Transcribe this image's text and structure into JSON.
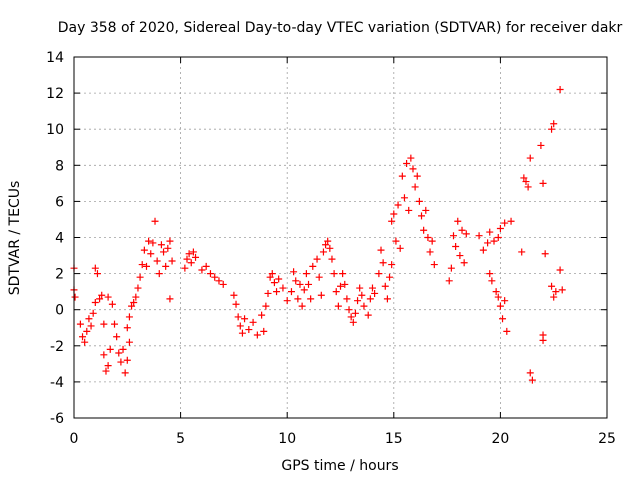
{
  "chart_data": {
    "type": "scatter",
    "title": "Day 358 of 2020, Sidereal Day-to-day VTEC variation (SDTVAR) for receiver dakr",
    "xlabel": "GPS time / hours",
    "ylabel": "SDTVAR / TECUs",
    "xlim": [
      0,
      25
    ],
    "ylim": [
      -6,
      14
    ],
    "xticks": [
      0,
      5,
      10,
      15,
      20,
      25
    ],
    "yticks": [
      -6,
      -4,
      -2,
      0,
      2,
      4,
      6,
      8,
      10,
      12,
      14
    ],
    "grid": true,
    "marker": "+",
    "color": "#ff0000",
    "series": [
      {
        "name": "SDTVAR",
        "points": [
          [
            0.0,
            2.3
          ],
          [
            0.0,
            1.1
          ],
          [
            0.05,
            0.7
          ],
          [
            0.3,
            -0.8
          ],
          [
            0.4,
            -1.5
          ],
          [
            0.5,
            -1.8
          ],
          [
            0.6,
            -1.2
          ],
          [
            0.7,
            -0.5
          ],
          [
            0.8,
            -0.9
          ],
          [
            0.9,
            -0.2
          ],
          [
            1.0,
            0.4
          ],
          [
            1.0,
            2.3
          ],
          [
            1.1,
            2.0
          ],
          [
            1.2,
            0.6
          ],
          [
            1.3,
            0.8
          ],
          [
            1.4,
            -0.8
          ],
          [
            1.4,
            -2.5
          ],
          [
            1.5,
            -3.4
          ],
          [
            1.6,
            -3.1
          ],
          [
            1.7,
            -2.2
          ],
          [
            1.6,
            0.7
          ],
          [
            1.8,
            0.3
          ],
          [
            1.9,
            -0.8
          ],
          [
            2.0,
            -1.5
          ],
          [
            2.1,
            -2.4
          ],
          [
            2.2,
            -2.9
          ],
          [
            2.3,
            -2.2
          ],
          [
            2.4,
            -3.5
          ],
          [
            2.5,
            -2.8
          ],
          [
            2.5,
            -1.0
          ],
          [
            2.6,
            -1.8
          ],
          [
            2.6,
            -0.4
          ],
          [
            2.7,
            0.2
          ],
          [
            2.8,
            0.4
          ],
          [
            2.9,
            0.7
          ],
          [
            3.0,
            1.2
          ],
          [
            3.1,
            1.8
          ],
          [
            3.2,
            2.5
          ],
          [
            3.3,
            3.3
          ],
          [
            3.4,
            2.4
          ],
          [
            3.5,
            3.8
          ],
          [
            3.6,
            3.1
          ],
          [
            3.7,
            3.7
          ],
          [
            3.8,
            4.9
          ],
          [
            3.9,
            2.7
          ],
          [
            4.0,
            2.0
          ],
          [
            4.1,
            3.6
          ],
          [
            4.2,
            3.2
          ],
          [
            4.3,
            2.4
          ],
          [
            4.4,
            3.4
          ],
          [
            4.5,
            3.8
          ],
          [
            4.5,
            0.6
          ],
          [
            4.6,
            2.7
          ],
          [
            5.2,
            2.3
          ],
          [
            5.3,
            2.8
          ],
          [
            5.4,
            3.1
          ],
          [
            5.5,
            2.6
          ],
          [
            5.6,
            3.2
          ],
          [
            5.7,
            2.9
          ],
          [
            6.0,
            2.2
          ],
          [
            6.2,
            2.4
          ],
          [
            6.4,
            2.0
          ],
          [
            6.6,
            1.8
          ],
          [
            6.8,
            1.6
          ],
          [
            7.0,
            1.4
          ],
          [
            7.5,
            0.8
          ],
          [
            7.6,
            0.3
          ],
          [
            7.7,
            -0.4
          ],
          [
            7.8,
            -0.9
          ],
          [
            7.9,
            -1.3
          ],
          [
            8.0,
            -0.5
          ],
          [
            8.2,
            -1.1
          ],
          [
            8.4,
            -0.7
          ],
          [
            8.6,
            -1.4
          ],
          [
            8.8,
            -0.3
          ],
          [
            8.9,
            -1.2
          ],
          [
            9.0,
            0.2
          ],
          [
            9.1,
            0.9
          ],
          [
            9.2,
            1.8
          ],
          [
            9.3,
            2.0
          ],
          [
            9.4,
            1.5
          ],
          [
            9.5,
            1.0
          ],
          [
            9.6,
            1.7
          ],
          [
            9.8,
            1.2
          ],
          [
            10.0,
            0.5
          ],
          [
            10.2,
            1.0
          ],
          [
            10.3,
            2.1
          ],
          [
            10.4,
            1.6
          ],
          [
            10.5,
            0.6
          ],
          [
            10.6,
            1.4
          ],
          [
            10.7,
            0.2
          ],
          [
            10.8,
            1.1
          ],
          [
            10.9,
            2.0
          ],
          [
            11.0,
            1.4
          ],
          [
            11.1,
            0.6
          ],
          [
            11.2,
            2.4
          ],
          [
            11.4,
            2.8
          ],
          [
            11.5,
            1.8
          ],
          [
            11.6,
            0.8
          ],
          [
            11.7,
            3.2
          ],
          [
            11.8,
            3.6
          ],
          [
            11.9,
            3.8
          ],
          [
            12.0,
            3.4
          ],
          [
            12.1,
            2.8
          ],
          [
            12.2,
            2.0
          ],
          [
            12.3,
            1.0
          ],
          [
            12.4,
            0.2
          ],
          [
            12.5,
            1.3
          ],
          [
            12.6,
            2.0
          ],
          [
            12.7,
            1.4
          ],
          [
            12.8,
            0.6
          ],
          [
            12.9,
            0.0
          ],
          [
            13.0,
            -0.4
          ],
          [
            13.1,
            -0.7
          ],
          [
            13.2,
            -0.2
          ],
          [
            13.3,
            0.5
          ],
          [
            13.4,
            1.2
          ],
          [
            13.5,
            0.8
          ],
          [
            13.6,
            0.2
          ],
          [
            13.8,
            -0.3
          ],
          [
            13.9,
            0.6
          ],
          [
            14.0,
            1.2
          ],
          [
            14.1,
            0.9
          ],
          [
            14.3,
            2.0
          ],
          [
            14.4,
            3.3
          ],
          [
            14.5,
            2.6
          ],
          [
            14.6,
            1.3
          ],
          [
            14.7,
            0.6
          ],
          [
            14.8,
            1.8
          ],
          [
            14.9,
            2.5
          ],
          [
            14.9,
            4.9
          ],
          [
            15.0,
            5.3
          ],
          [
            15.1,
            3.8
          ],
          [
            15.2,
            5.8
          ],
          [
            15.3,
            3.4
          ],
          [
            15.4,
            7.4
          ],
          [
            15.5,
            6.2
          ],
          [
            15.6,
            8.1
          ],
          [
            15.7,
            5.5
          ],
          [
            15.8,
            8.4
          ],
          [
            15.9,
            7.8
          ],
          [
            16.0,
            6.8
          ],
          [
            16.1,
            7.4
          ],
          [
            16.2,
            6.0
          ],
          [
            16.3,
            5.2
          ],
          [
            16.4,
            4.4
          ],
          [
            16.5,
            5.5
          ],
          [
            16.6,
            4.0
          ],
          [
            16.7,
            3.2
          ],
          [
            16.8,
            3.8
          ],
          [
            16.9,
            2.5
          ],
          [
            17.6,
            1.6
          ],
          [
            17.7,
            2.3
          ],
          [
            17.8,
            4.1
          ],
          [
            17.9,
            3.5
          ],
          [
            18.0,
            4.9
          ],
          [
            18.1,
            3.0
          ],
          [
            18.2,
            4.4
          ],
          [
            18.3,
            2.6
          ],
          [
            18.4,
            4.2
          ],
          [
            19.0,
            4.1
          ],
          [
            19.2,
            3.3
          ],
          [
            19.4,
            3.7
          ],
          [
            19.5,
            4.3
          ],
          [
            19.5,
            2.0
          ],
          [
            19.6,
            1.6
          ],
          [
            19.7,
            3.8
          ],
          [
            19.8,
            1.0
          ],
          [
            19.9,
            4.0
          ],
          [
            19.9,
            0.7
          ],
          [
            20.0,
            4.5
          ],
          [
            20.0,
            0.2
          ],
          [
            20.1,
            -0.5
          ],
          [
            20.2,
            4.8
          ],
          [
            20.2,
            0.5
          ],
          [
            20.3,
            -1.2
          ],
          [
            20.5,
            4.9
          ],
          [
            21.0,
            3.2
          ],
          [
            21.1,
            7.3
          ],
          [
            21.2,
            7.1
          ],
          [
            21.3,
            6.8
          ],
          [
            21.4,
            8.4
          ],
          [
            21.4,
            -3.5
          ],
          [
            21.5,
            -3.9
          ],
          [
            21.9,
            9.1
          ],
          [
            22.0,
            7.0
          ],
          [
            22.0,
            -1.4
          ],
          [
            22.0,
            -1.7
          ],
          [
            22.1,
            3.1
          ],
          [
            22.4,
            10.0
          ],
          [
            22.5,
            10.3
          ],
          [
            22.4,
            1.3
          ],
          [
            22.5,
            0.7
          ],
          [
            22.6,
            1.0
          ],
          [
            22.8,
            12.2
          ],
          [
            22.8,
            2.2
          ],
          [
            22.9,
            1.1
          ]
        ]
      }
    ]
  }
}
